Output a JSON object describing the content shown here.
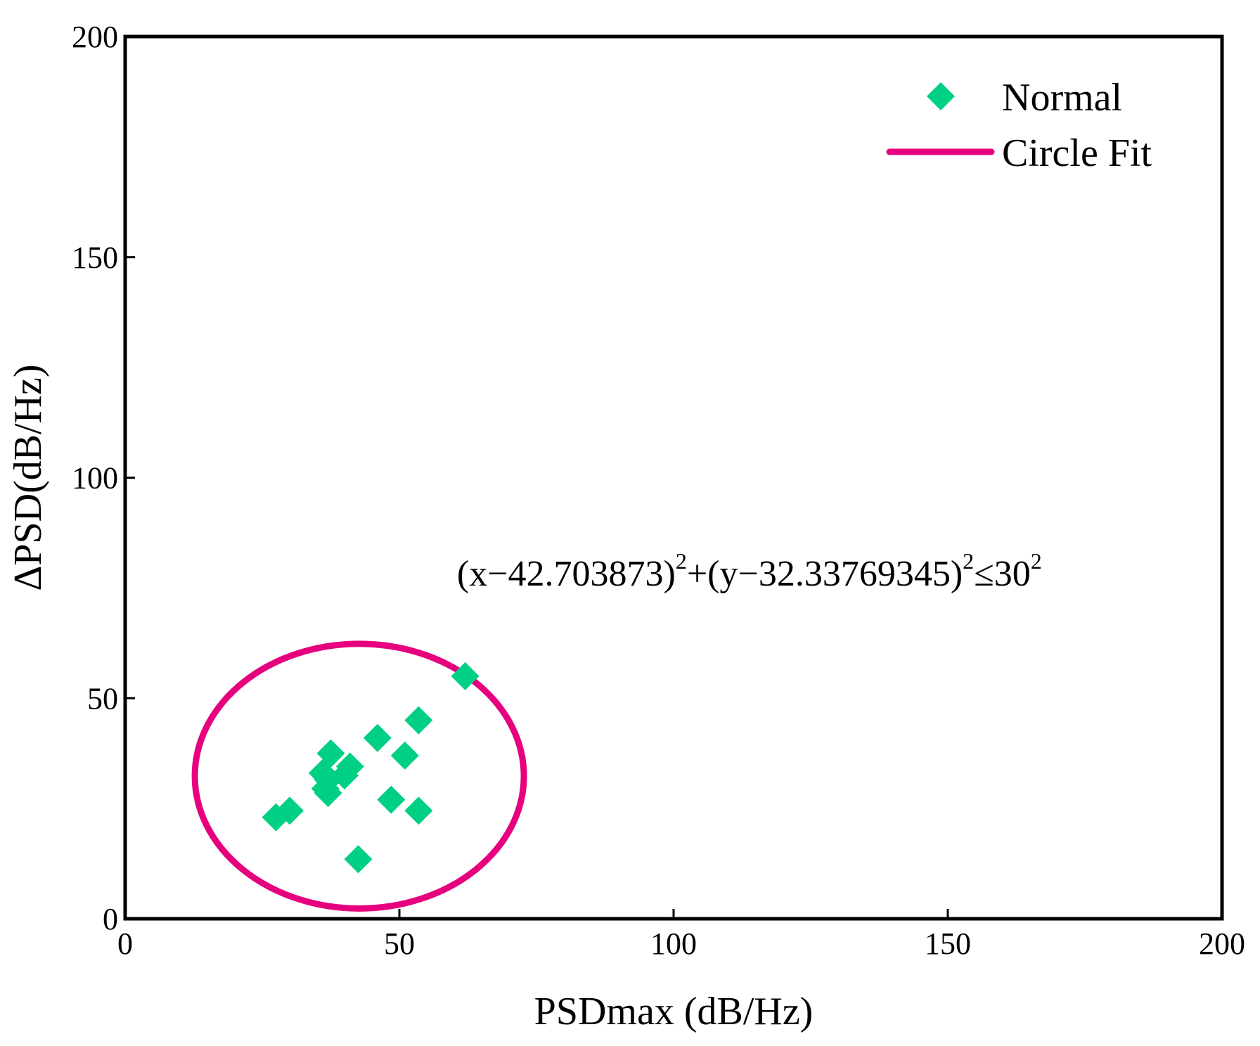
{
  "chart_data": {
    "type": "scatter",
    "xlabel": "PSDmax (dB/Hz)",
    "ylabel": "ΔPSD(dB/Hz)",
    "xlim": [
      0,
      200
    ],
    "ylim": [
      0,
      200
    ],
    "x_ticks": [
      "0",
      "50",
      "100",
      "150",
      "200"
    ],
    "y_ticks": [
      "0",
      "50",
      "100",
      "150",
      "200"
    ],
    "legend_position": "top-right",
    "series": [
      {
        "name": "Normal",
        "marker": "diamond",
        "color": "#00d084",
        "points": [
          [
            27.5,
            23.0
          ],
          [
            30.0,
            24.5
          ],
          [
            36.0,
            33.0
          ],
          [
            36.5,
            29.5
          ],
          [
            37.0,
            31.5
          ],
          [
            37.5,
            37.5
          ],
          [
            37.0,
            28.5
          ],
          [
            40.0,
            32.5
          ],
          [
            41.0,
            34.5
          ],
          [
            42.5,
            13.5
          ],
          [
            46.0,
            41.0
          ],
          [
            48.5,
            27.0
          ],
          [
            51.0,
            37.0
          ],
          [
            53.5,
            24.5
          ],
          [
            53.5,
            45.0
          ],
          [
            62.0,
            55.0
          ]
        ]
      },
      {
        "name": "Circle Fit",
        "type": "circle",
        "color": "#e6007e",
        "center": [
          42.703873,
          32.33769345
        ],
        "radius": 30
      }
    ],
    "annotation": {
      "base1": "(x−42.703873)",
      "sup1": "2",
      "base2": "+(y−32.33769345)",
      "sup2": "2",
      "base3": "≤30",
      "sup3": "2",
      "anchor_x": 60.5,
      "anchor_y": 75.5
    }
  }
}
